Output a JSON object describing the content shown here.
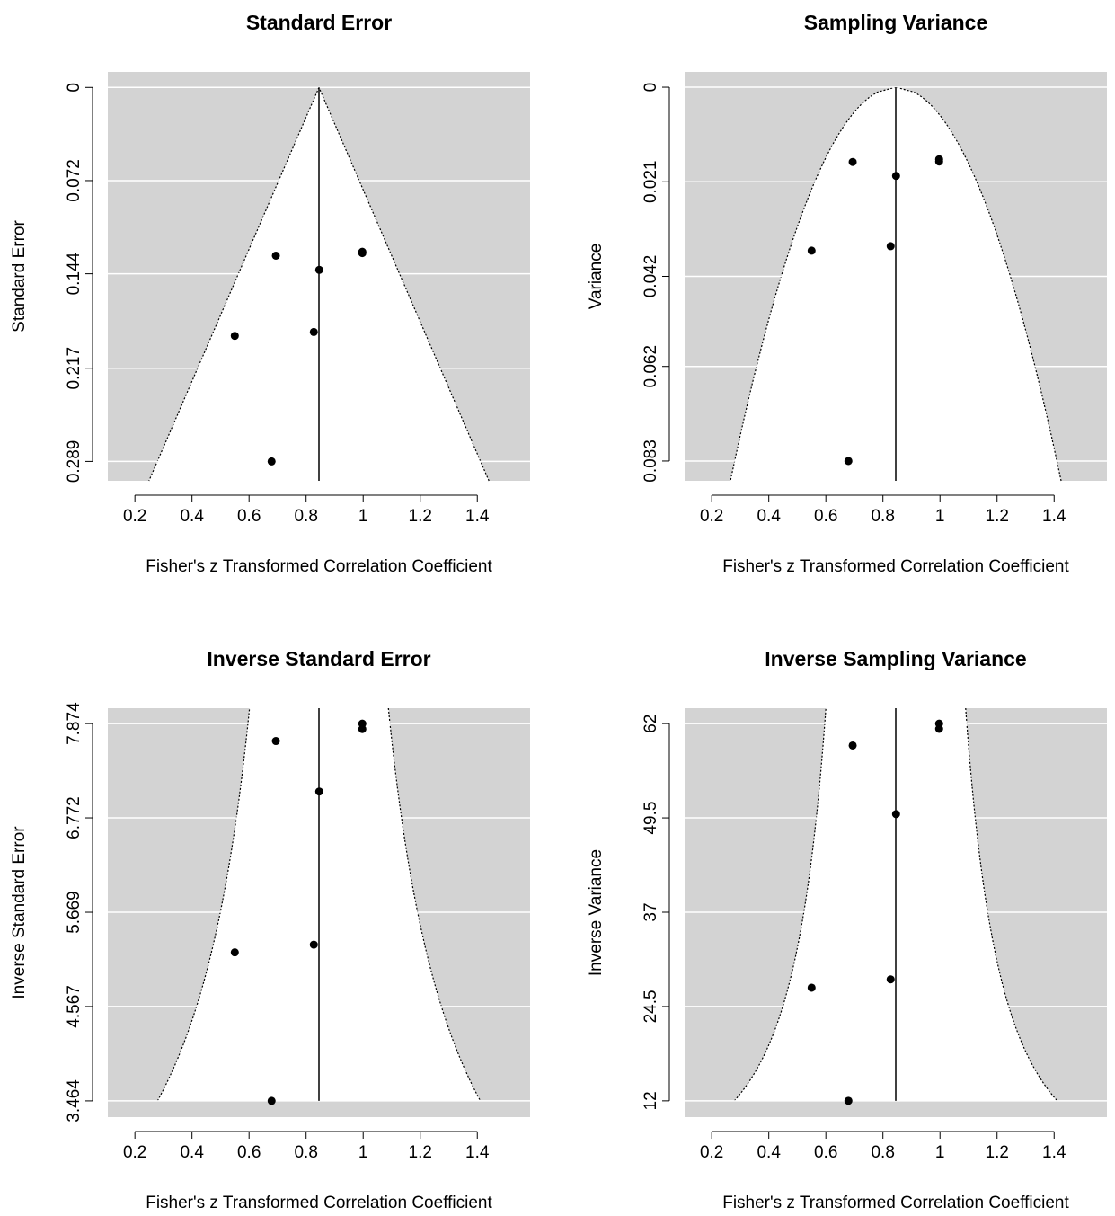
{
  "chart_data": [
    {
      "type": "funnel",
      "title": "Standard Error",
      "xlabel": "Fisher's z Transformed Correlation Coefficient",
      "ylabel": "Standard Error",
      "x": [
        0.997,
        0.997,
        0.694,
        0.846,
        0.55,
        0.827,
        0.679
      ],
      "values": [
        0.127,
        0.128,
        0.13,
        0.141,
        0.192,
        0.189,
        0.289
      ],
      "estimate": 0.845,
      "xlim": [
        0.105,
        1.585
      ],
      "ylim": [
        0.304,
        -0.012
      ],
      "xticks": [
        0.2,
        0.4,
        0.6,
        0.8,
        1,
        1.2,
        1.4
      ],
      "yticks": [
        0,
        0.072,
        0.144,
        0.217,
        0.289
      ],
      "color": "#000000",
      "background": "#d3d3d3"
    },
    {
      "type": "funnel",
      "title": "Sampling Variance",
      "xlabel": "Fisher's z Transformed Correlation Coefficient",
      "ylabel": "Variance",
      "x": [
        0.997,
        0.997,
        0.694,
        0.846,
        0.55,
        0.827,
        0.679
      ],
      "values": [
        0.016,
        0.0165,
        0.0166,
        0.0197,
        0.0363,
        0.0353,
        0.083
      ],
      "estimate": 0.845,
      "xlim": [
        0.105,
        1.585
      ],
      "ylim": [
        0.0874,
        -0.0034
      ],
      "xticks": [
        0.2,
        0.4,
        0.6,
        0.8,
        1,
        1.2,
        1.4
      ],
      "yticks": [
        0,
        0.021,
        0.042,
        0.062,
        0.083
      ],
      "color": "#000000",
      "background": "#d3d3d3"
    },
    {
      "type": "funnel",
      "title": "Inverse Standard Error",
      "xlabel": "Fisher's z Transformed Correlation Coefficient",
      "ylabel": "Inverse Standard Error",
      "x": [
        0.997,
        0.997,
        0.694,
        0.846,
        0.55,
        0.827,
        0.679
      ],
      "values": [
        7.874,
        7.81,
        7.67,
        7.08,
        5.2,
        5.29,
        3.464
      ],
      "estimate": 0.845,
      "xlim": [
        0.105,
        1.585
      ],
      "ylim": [
        3.274,
        8.054
      ],
      "xticks": [
        0.2,
        0.4,
        0.6,
        0.8,
        1,
        1.2,
        1.4
      ],
      "yticks": [
        3.464,
        4.567,
        5.669,
        6.772,
        7.874
      ],
      "color": "#000000",
      "background": "#d3d3d3"
    },
    {
      "type": "funnel",
      "title": "Inverse Sampling Variance",
      "xlabel": "Fisher's z Transformed Correlation Coefficient",
      "ylabel": "Inverse Variance",
      "x": [
        0.997,
        0.997,
        0.694,
        0.846,
        0.55,
        0.827,
        0.679
      ],
      "values": [
        62,
        61.3,
        59.1,
        50,
        27,
        28.1,
        12
      ],
      "estimate": 0.845,
      "xlim": [
        0.105,
        1.585
      ],
      "ylim": [
        9.84,
        64.04
      ],
      "xticks": [
        0.2,
        0.4,
        0.6,
        0.8,
        1,
        1.2,
        1.4
      ],
      "yticks": [
        12,
        24.5,
        37,
        49.5,
        62
      ],
      "color": "#000000",
      "background": "#d3d3d3"
    }
  ]
}
